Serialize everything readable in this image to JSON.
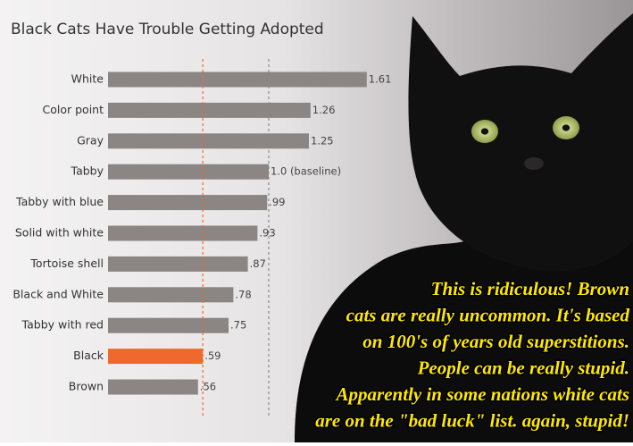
{
  "chart_data": {
    "type": "hbar",
    "title": "Black Cats Have Trouble Getting Adopted",
    "categories": [
      "White",
      "Color point",
      "Gray",
      "Tabby",
      "Tabby with blue",
      "Solid with white",
      "Tortoise shell",
      "Black and White",
      "Tabby with red",
      "Black",
      "Brown"
    ],
    "values": [
      1.61,
      1.26,
      1.25,
      1.0,
      0.99,
      0.93,
      0.87,
      0.78,
      0.75,
      0.59,
      0.56
    ],
    "value_labels": [
      "1.61",
      "1.26",
      "1.25",
      "1.0 (baseline)",
      ".99",
      ".93",
      ".87",
      ".78",
      ".75",
      ".59",
      ".56"
    ],
    "colors": [
      "#8b8583",
      "#8b8583",
      "#8b8583",
      "#8b8583",
      "#8b8583",
      "#8b8583",
      "#8b8583",
      "#8b8583",
      "#8b8583",
      "#f0692c",
      "#8b8583"
    ],
    "xlim": [
      0,
      1.7
    ],
    "reference_lines": [
      {
        "value": 1.0,
        "color": "#8a8a8a"
      },
      {
        "value": 0.59,
        "color": "#f0692c"
      }
    ]
  },
  "caption": {
    "lines": [
      "This is ridiculous! Brown",
      "cats are really uncommon. It's based",
      "on 100's of years old superstitions.",
      "People can be really stupid.",
      "Apparently in some nations white cats",
      "are on the \"bad luck\" list. again, stupid!"
    ]
  }
}
